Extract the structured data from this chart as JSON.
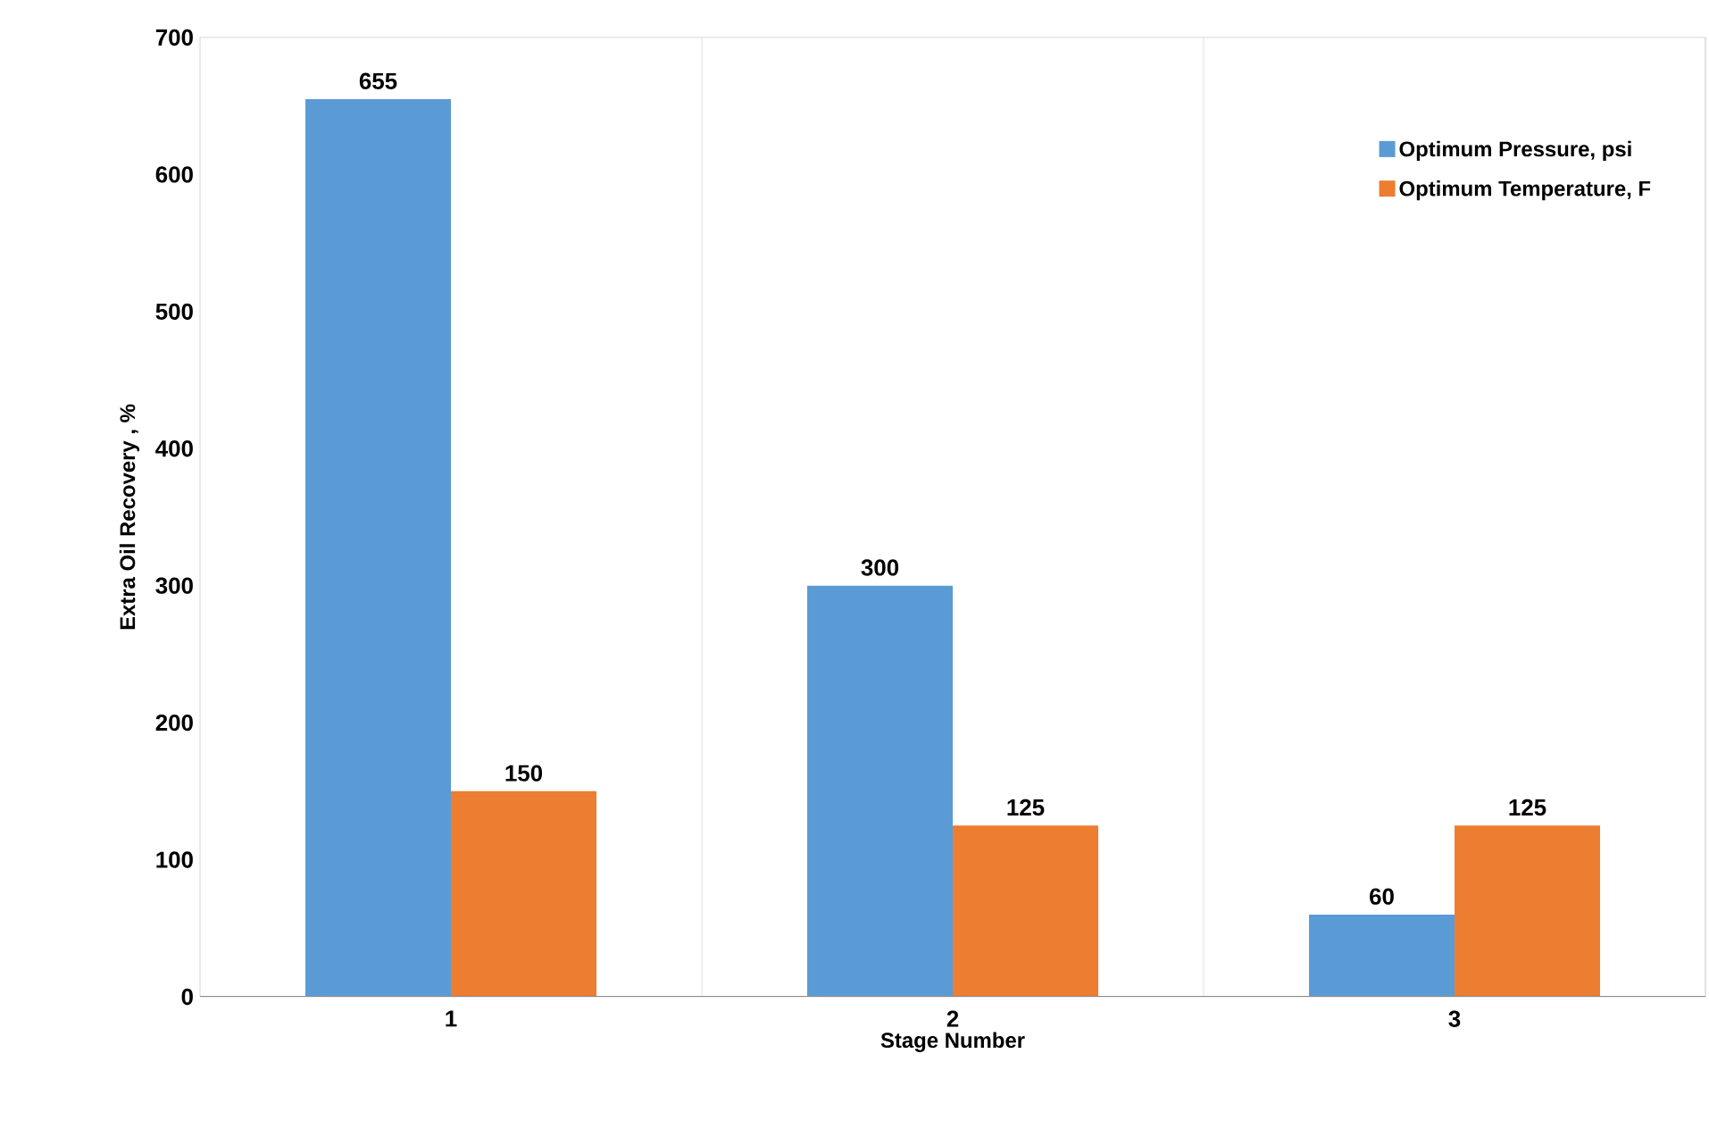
{
  "chart_data": {
    "type": "bar",
    "xlabel": "Stage Number",
    "ylabel": "Extra Oil Recovery , %",
    "categories": [
      "1",
      "2",
      "3"
    ],
    "series": [
      {
        "name": "Optimum Pressure, psi",
        "color": "#5b9bd5",
        "values": [
          655,
          300,
          60
        ]
      },
      {
        "name": "Optimum Temperature, F",
        "color": "#ed7d31",
        "values": [
          150,
          125,
          125
        ]
      }
    ],
    "ylim": [
      0,
      700
    ],
    "yticks": [
      0,
      100,
      200,
      300,
      400,
      500,
      600,
      700
    ],
    "grid": "x",
    "legend": "top right",
    "data_labels": true
  }
}
